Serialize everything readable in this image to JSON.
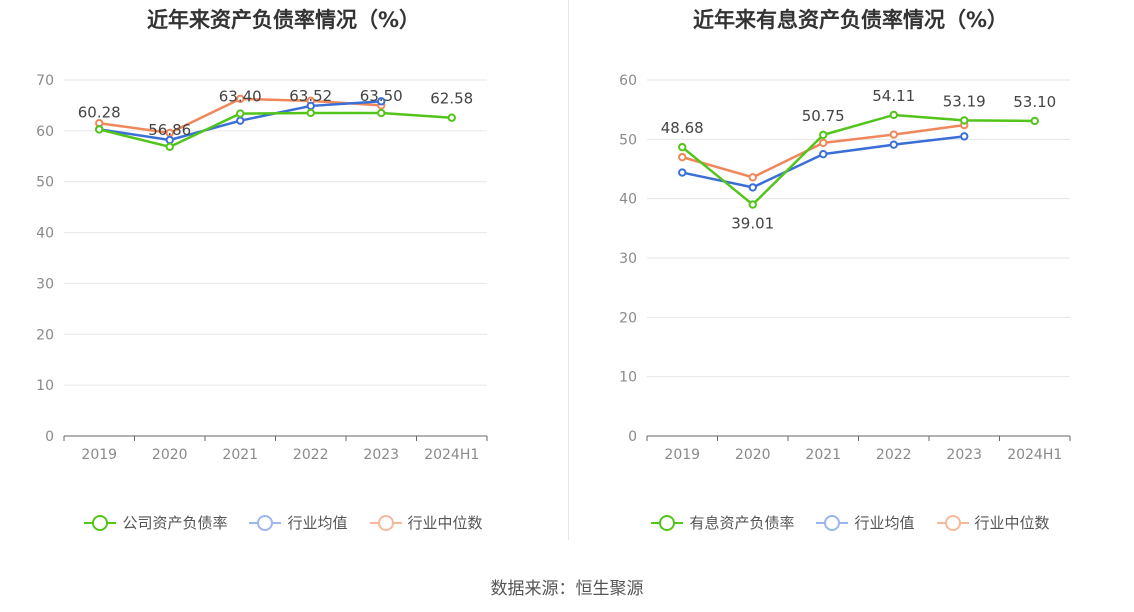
{
  "source": "数据来源：恒生聚源",
  "chart_data": [
    {
      "type": "line",
      "title": "近年来资产负债率情况（%）",
      "categories": [
        "2019",
        "2020",
        "2021",
        "2022",
        "2023",
        "2024H1"
      ],
      "y_ticks": [
        "0",
        "10",
        "20",
        "30",
        "40",
        "50",
        "60",
        "70"
      ],
      "ylim": [
        0,
        70
      ],
      "grid": true,
      "legend_position": "bottom",
      "series": [
        {
          "name": "公司资产负债率",
          "color": "#52c41a",
          "values": [
            60.28,
            56.86,
            63.4,
            63.52,
            63.5,
            62.58
          ],
          "labels": [
            "60.28",
            "56.86",
            "63.40",
            "63.52",
            "63.50",
            "62.58"
          ]
        },
        {
          "name": "行业均值",
          "color": "#3b6fd8",
          "values": [
            60.3,
            58.2,
            62.0,
            64.9,
            65.8,
            null
          ]
        },
        {
          "name": "行业中位数",
          "color": "#f0875a",
          "values": [
            61.5,
            59.6,
            66.3,
            65.9,
            65.0,
            null
          ]
        }
      ]
    },
    {
      "type": "line",
      "title": "近年来有息资产负债率情况（%）",
      "categories": [
        "2019",
        "2020",
        "2021",
        "2022",
        "2023",
        "2024H1"
      ],
      "y_ticks": [
        "0",
        "10",
        "20",
        "30",
        "40",
        "50",
        "60"
      ],
      "ylim": [
        0,
        60
      ],
      "grid": true,
      "legend_position": "bottom",
      "series": [
        {
          "name": "有息资产负债率",
          "color": "#52c41a",
          "values": [
            48.68,
            39.01,
            50.75,
            54.11,
            53.19,
            53.1
          ],
          "labels": [
            "48.68",
            "39.01",
            "50.75",
            "54.11",
            "53.19",
            "53.10"
          ]
        },
        {
          "name": "行业均值",
          "color": "#3b6fd8",
          "values": [
            44.4,
            41.9,
            47.5,
            49.1,
            50.5,
            null
          ]
        },
        {
          "name": "行业中位数",
          "color": "#f0875a",
          "values": [
            47.0,
            43.6,
            49.4,
            50.8,
            52.4,
            null
          ]
        }
      ]
    }
  ]
}
